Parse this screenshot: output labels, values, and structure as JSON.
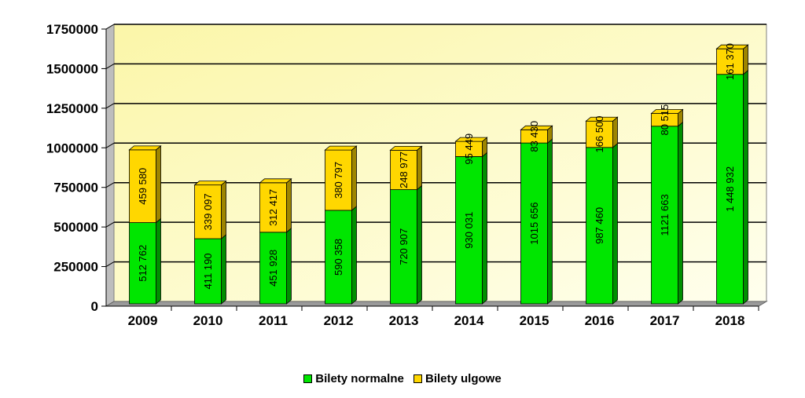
{
  "chart_data": {
    "type": "bar",
    "stacked": true,
    "categories": [
      "2009",
      "2010",
      "2011",
      "2012",
      "2013",
      "2014",
      "2015",
      "2016",
      "2017",
      "2018"
    ],
    "series": [
      {
        "name": "Bilety normalne",
        "color": "#00e600",
        "values": [
          512762,
          411190,
          451928,
          590358,
          720907,
          930031,
          1015656,
          987460,
          1121663,
          1448932
        ],
        "labels": [
          "512 762",
          "411 190",
          "451 928",
          "590 358",
          "720 907",
          "930 031",
          "1015 656",
          "987 460",
          "1121 663",
          "1 448 932"
        ]
      },
      {
        "name": "Bilety ulgowe",
        "color": "#ffd700",
        "values": [
          459580,
          339097,
          312417,
          380797,
          248977,
          95449,
          83430,
          166500,
          80515,
          161370
        ],
        "labels": [
          "459 580",
          "339 097",
          "312 417",
          "380 797",
          "248 977",
          "95 449",
          "83 430",
          "166 500",
          "80 515",
          "161 370"
        ]
      }
    ],
    "y_ticks": [
      "0",
      "250000",
      "500000",
      "750000",
      "1000000",
      "1250000",
      "1500000",
      "1750000"
    ],
    "ylim": [
      0,
      1750000
    ],
    "grid": true,
    "legend_position": "bottom"
  }
}
